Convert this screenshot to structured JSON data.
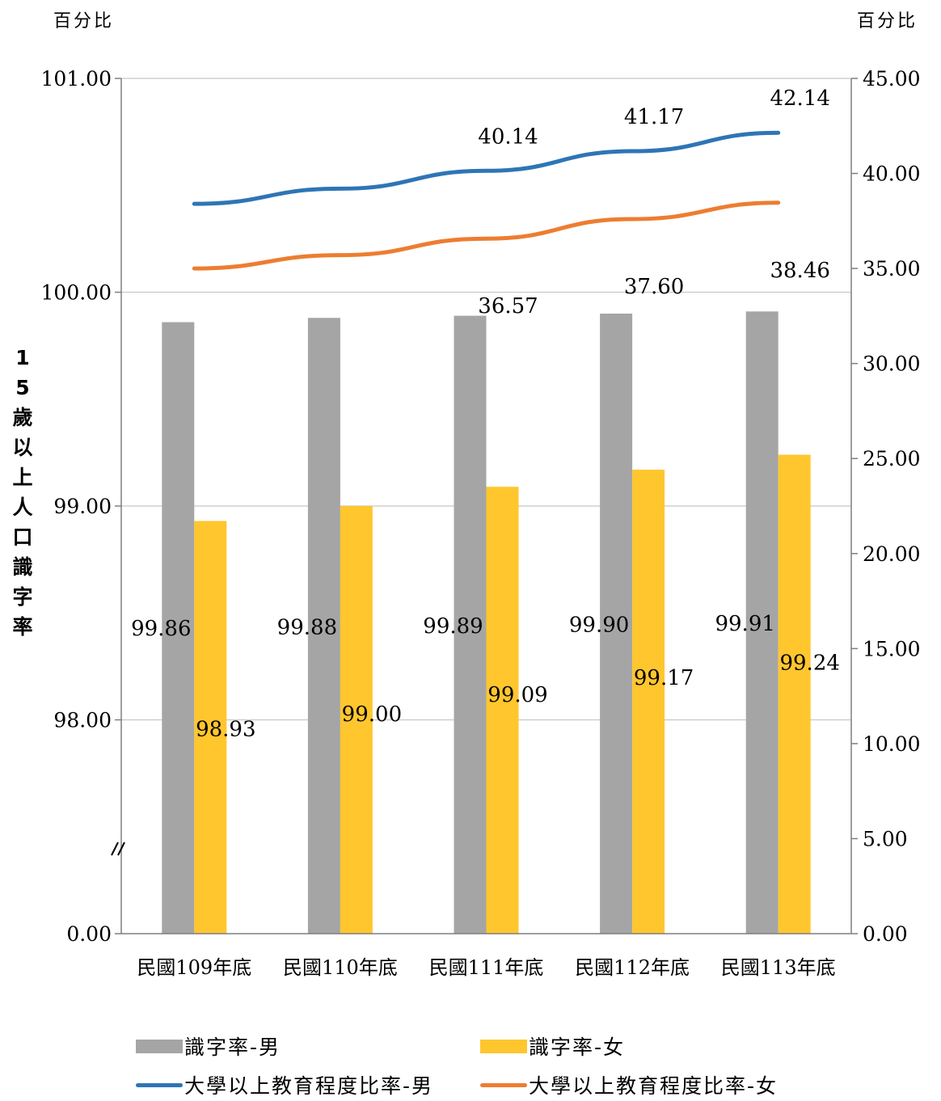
{
  "unit_left": "百分比",
  "unit_right": "百分比",
  "y_left_label": "15歲以上人口識字率",
  "legend": [
    {
      "label": "識字率-男",
      "kind": "bar",
      "color": "#a5a5a5"
    },
    {
      "label": "識字率-女",
      "kind": "bar",
      "color": "#ffc62e"
    },
    {
      "label": "大學以上教育程度比率-男",
      "kind": "line",
      "color": "#2e75b6"
    },
    {
      "label": "大學以上教育程度比率-女",
      "kind": "line",
      "color": "#ed7d31"
    }
  ],
  "chart_data": {
    "type": "bar",
    "categories": [
      "民國109年底",
      "民國110年底",
      "民國111年底",
      "民國112年底",
      "民國113年底"
    ],
    "y_left": {
      "ticks": [
        "0.00",
        "98.00",
        "99.00",
        "100.00",
        "101.00"
      ],
      "scale": "broken",
      "segment": [
        98,
        101
      ]
    },
    "y_right": {
      "ticks": [
        "0.00",
        "5.00",
        "10.00",
        "15.00",
        "20.00",
        "25.00",
        "30.00",
        "35.00",
        "40.00",
        "45.00"
      ],
      "ylim": [
        0,
        45
      ]
    },
    "bar_series": [
      {
        "name": "識字率-男",
        "axis": "left",
        "color": "#a5a5a5",
        "values": [
          99.86,
          99.88,
          99.89,
          99.9,
          99.91
        ],
        "labels": [
          "99.86",
          "99.88",
          "99.89",
          "99.90",
          "99.91"
        ]
      },
      {
        "name": "識字率-女",
        "axis": "left",
        "color": "#ffc62e",
        "values": [
          98.93,
          99.0,
          99.09,
          99.17,
          99.24
        ],
        "labels": [
          "98.93",
          "99.00",
          "99.09",
          "99.17",
          "99.24"
        ]
      }
    ],
    "line_series": [
      {
        "name": "大學以上教育程度比率-男",
        "axis": "right",
        "color": "#2e75b6",
        "values": [
          38.4,
          39.2,
          40.14,
          41.17,
          42.14
        ],
        "labels": [
          "",
          "",
          "40.14",
          "41.17",
          "42.14"
        ]
      },
      {
        "name": "大學以上教育程度比率-女",
        "axis": "right",
        "color": "#ed7d31",
        "values": [
          35.0,
          35.7,
          36.57,
          37.6,
          38.46
        ],
        "labels": [
          "",
          "",
          "36.57",
          "37.60",
          "38.46"
        ]
      }
    ],
    "grid": true,
    "axis_break": true,
    "legend_position": "bottom"
  }
}
